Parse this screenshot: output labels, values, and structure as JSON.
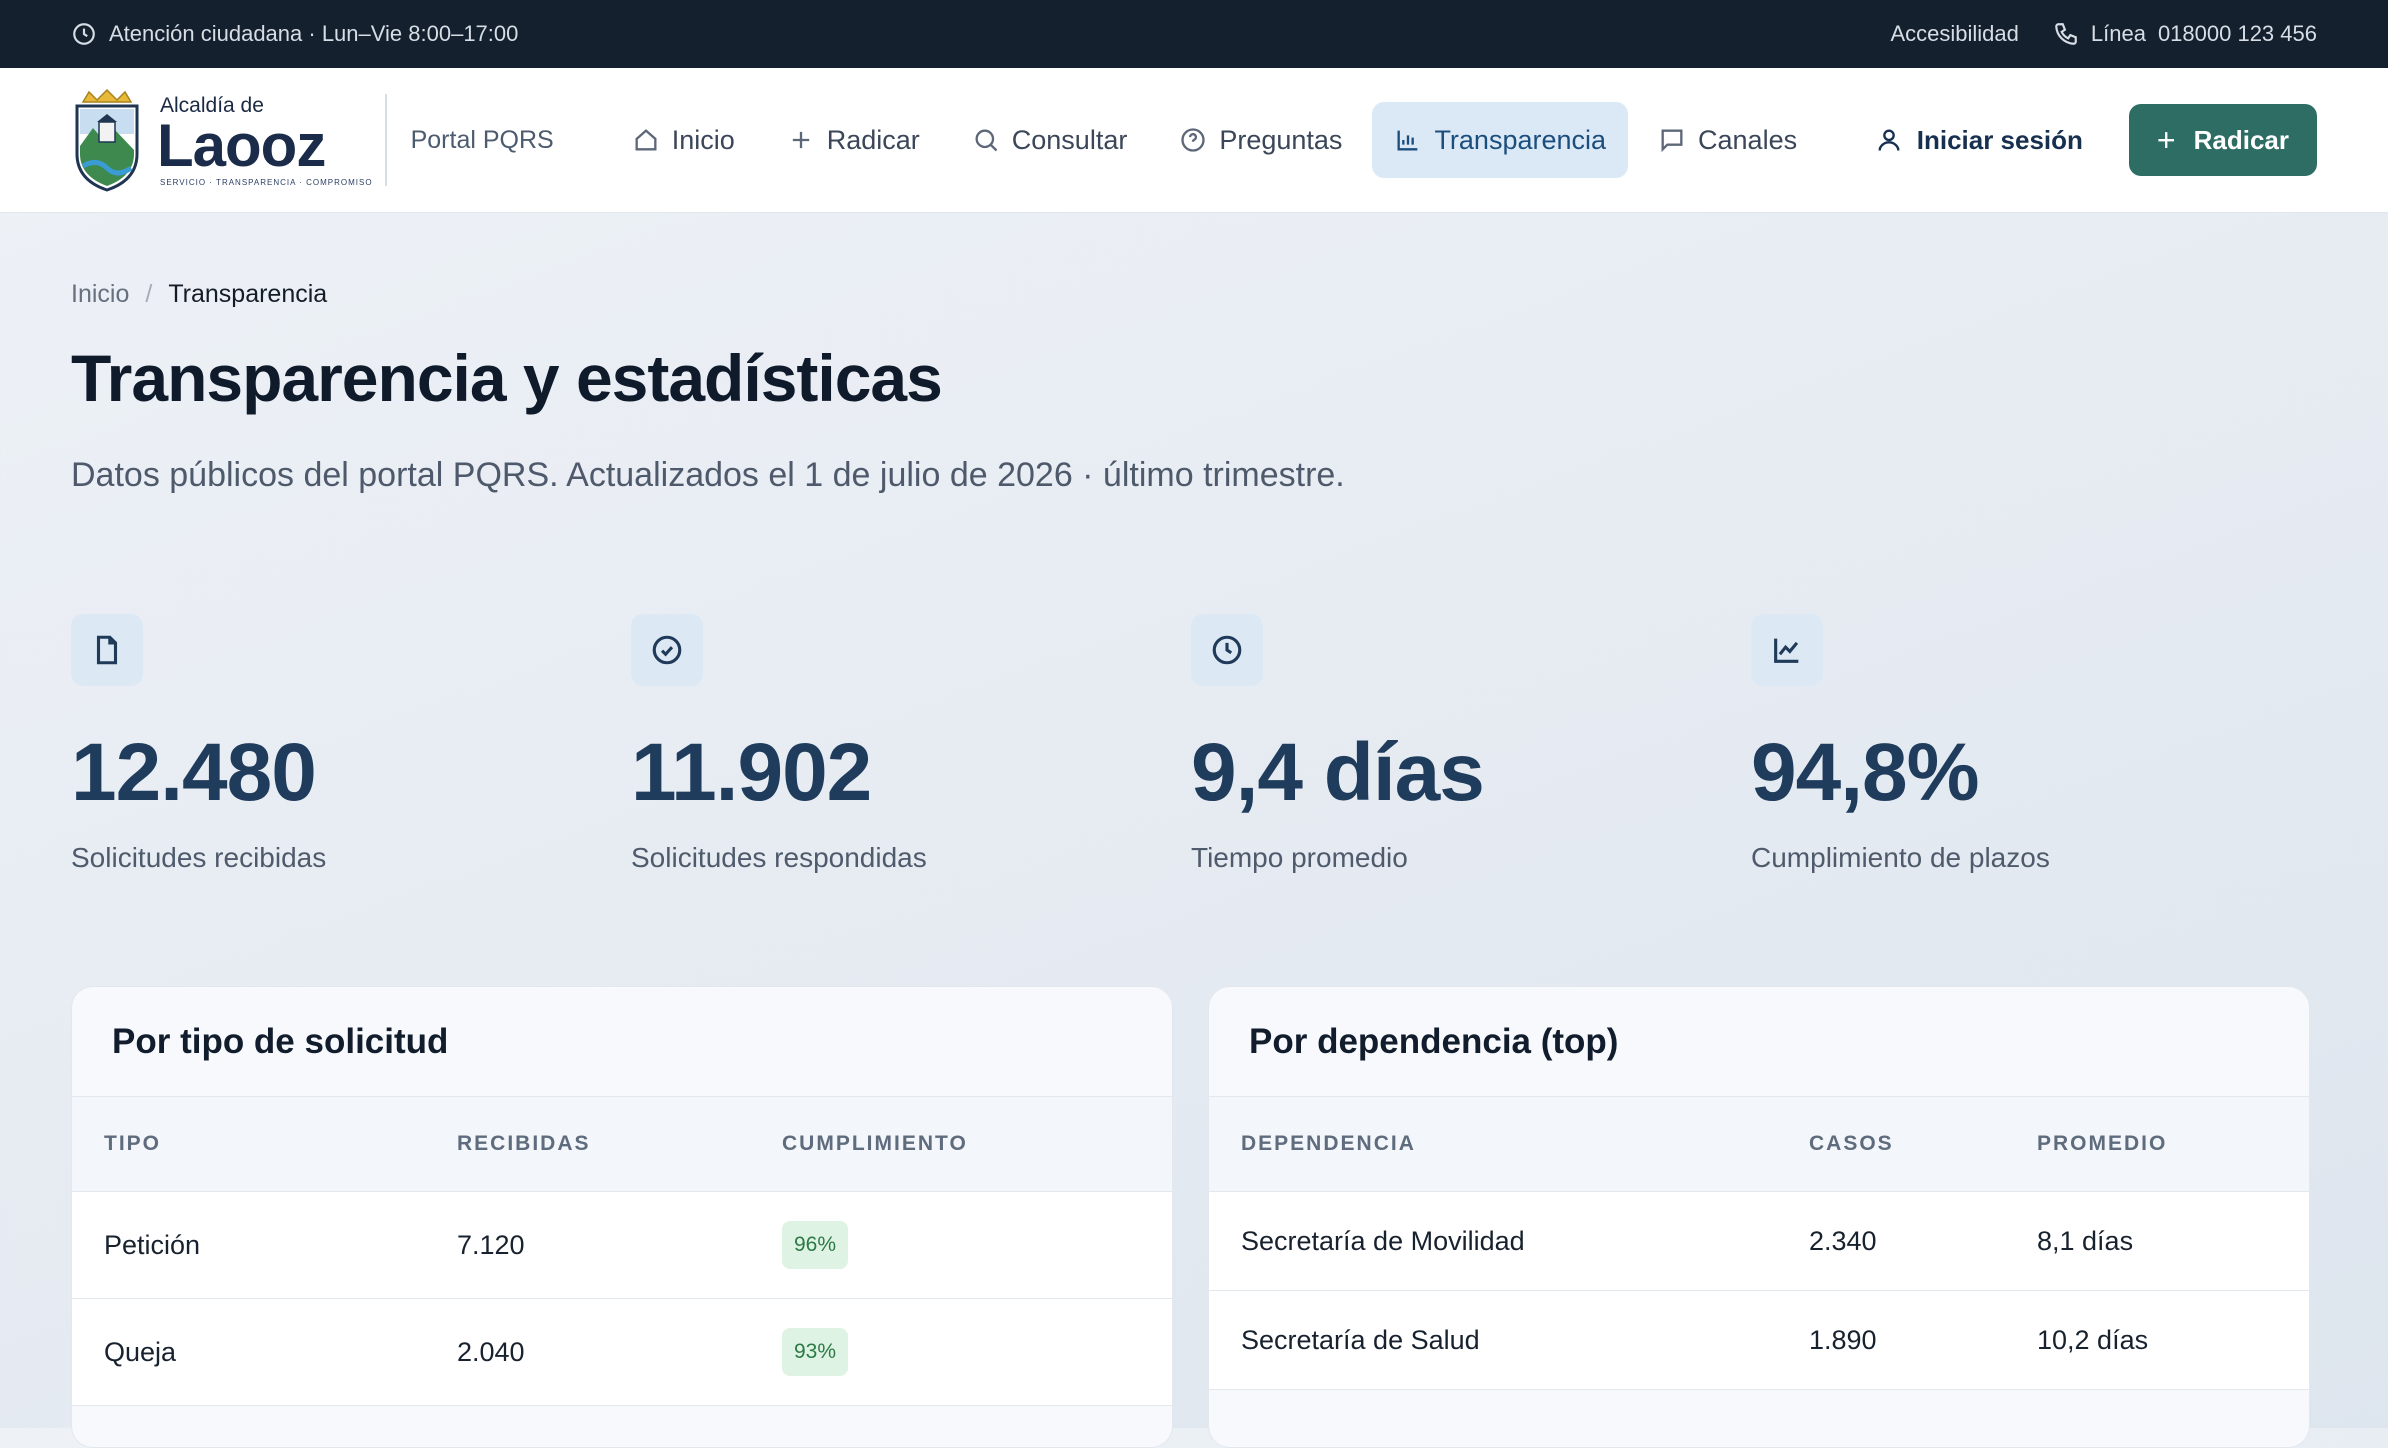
{
  "topbar": {
    "hours": "Atención ciudadana · Lun–Vie 8:00–17:00",
    "accessibility": "Accesibilidad",
    "line_label": "Línea",
    "line_number": "018000 123 456"
  },
  "header": {
    "logo_small": "Alcaldía de",
    "logo_big": "Laooz",
    "logo_tag": "SERVICIO · TRANSPARENCIA · COMPROMISO",
    "portal": "Portal PQRS",
    "nav": [
      {
        "label": "Inicio",
        "icon": "home-icon"
      },
      {
        "label": "Radicar",
        "icon": "plus-icon"
      },
      {
        "label": "Consultar",
        "icon": "search-icon"
      },
      {
        "label": "Preguntas",
        "icon": "help-circle-icon"
      },
      {
        "label": "Transparencia",
        "icon": "bar-chart-icon",
        "active": true
      },
      {
        "label": "Canales",
        "icon": "chat-icon"
      }
    ],
    "login": "Iniciar sesión",
    "cta": "Radicar"
  },
  "breadcrumb": {
    "home": "Inicio",
    "sep": "/",
    "current": "Transparencia"
  },
  "page": {
    "title": "Transparencia y estadísticas",
    "subtitle": "Datos públicos del portal PQRS. Actualizados el 1 de julio de 2026 · último trimestre."
  },
  "kpis": [
    {
      "value": "12.480",
      "label": "Solicitudes recibidas",
      "icon": "document-icon"
    },
    {
      "value": "11.902",
      "label": "Solicitudes respondidas",
      "icon": "check-circle-icon"
    },
    {
      "value": "9,4 días",
      "label": "Tiempo promedio",
      "icon": "clock-icon"
    },
    {
      "value": "94,8%",
      "label": "Cumplimiento de plazos",
      "icon": "trend-chart-icon"
    }
  ],
  "tipo_table": {
    "title": "Por tipo de solicitud",
    "headers": [
      "TIPO",
      "RECIBIDAS",
      "CUMPLIMIENTO"
    ],
    "rows": [
      {
        "tipo": "Petición",
        "recibidas": "7.120",
        "cumplimiento": "96%"
      },
      {
        "tipo": "Queja",
        "recibidas": "2.040",
        "cumplimiento": "93%"
      }
    ]
  },
  "dependencia_table": {
    "title": "Por dependencia (top)",
    "headers": [
      "DEPENDENCIA",
      "CASOS",
      "PROMEDIO"
    ],
    "rows": [
      {
        "dependencia": "Secretaría de Movilidad",
        "casos": "2.340",
        "promedio": "8,1 días"
      },
      {
        "dependencia": "Secretaría de Salud",
        "casos": "1.890",
        "promedio": "10,2 días"
      }
    ]
  },
  "colors": {
    "accent": "#2e6d63",
    "topbar": "#14202e",
    "kpi_value": "#1f3c5c",
    "active_nav_bg": "#dbe9f7"
  }
}
